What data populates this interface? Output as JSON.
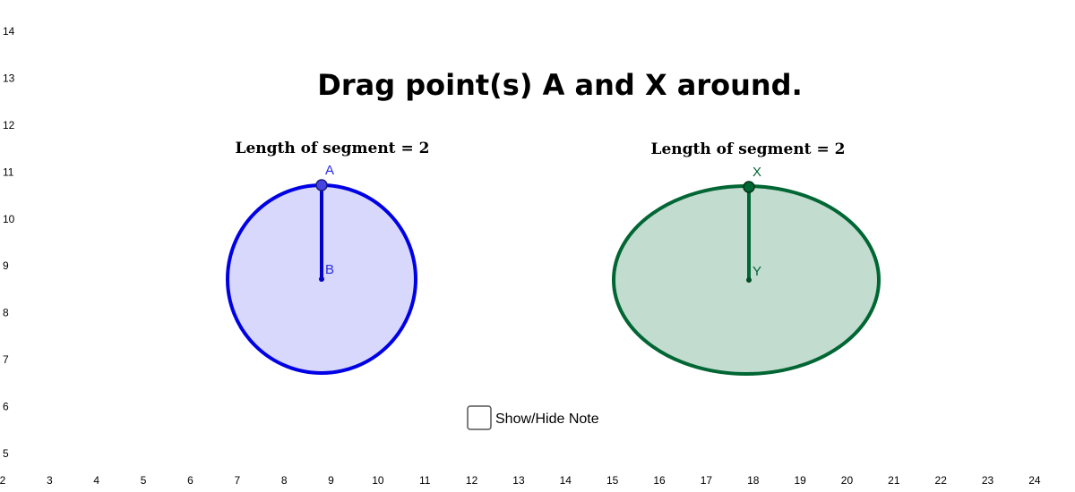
{
  "axes": {
    "x_ticks": [
      2,
      3,
      4,
      5,
      6,
      7,
      8,
      9,
      10,
      11,
      12,
      13,
      14,
      15,
      16,
      17,
      18,
      19,
      20,
      21,
      22,
      23,
      24
    ],
    "y_ticks": [
      14,
      13,
      12,
      11,
      10,
      9,
      8,
      7,
      6,
      5
    ]
  },
  "title": "Drag point(s) A and X around.",
  "left_figure": {
    "caption": "Length of segment = 2",
    "point_labels": [
      "A",
      "B"
    ]
  },
  "right_figure": {
    "caption": "Length of segment = 2",
    "point_labels": [
      "X",
      "Y"
    ]
  },
  "checkbox": {
    "label": "Show/Hide Note"
  }
}
